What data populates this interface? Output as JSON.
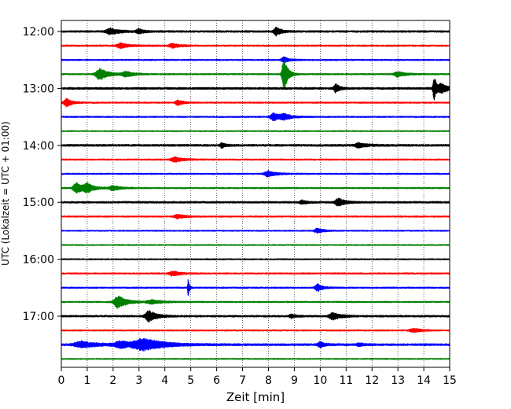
{
  "chart_data": {
    "type": "line",
    "title": "",
    "xlabel": "Zeit  [min]",
    "ylabel": "UTC (Lokalzeit = UTC + 01:00)",
    "xlim": [
      0,
      15
    ],
    "x_ticks": [
      "0",
      "1",
      "2",
      "3",
      "4",
      "5",
      "6",
      "7",
      "8",
      "9",
      "10",
      "11",
      "12",
      "13",
      "14",
      "15"
    ],
    "y_ticks": [
      {
        "label": "12:00",
        "trace": 0
      },
      {
        "label": "13:00",
        "trace": 4
      },
      {
        "label": "14:00",
        "trace": 8
      },
      {
        "label": "15:00",
        "trace": 12
      },
      {
        "label": "16:00",
        "trace": 16
      },
      {
        "label": "17:00",
        "trace": 20
      }
    ],
    "trace_interval_min": 15,
    "grid": "vertical dotted lines at each minute",
    "color_cycle": [
      "#000000",
      "#ff0000",
      "#0000ff",
      "#008000"
    ],
    "traces": [
      {
        "start": "12:00",
        "color": "#000000",
        "noise": 0.55,
        "events": [
          [
            1.9,
            0.9,
            0.35
          ],
          [
            8.3,
            1.2,
            0.2
          ],
          [
            3.0,
            0.7,
            0.2
          ]
        ]
      },
      {
        "start": "12:15",
        "color": "#ff0000",
        "noise": 0.5,
        "events": [
          [
            2.3,
            0.8,
            0.3
          ],
          [
            4.3,
            0.6,
            0.3
          ]
        ]
      },
      {
        "start": "12:30",
        "color": "#0000ff",
        "noise": 0.45,
        "events": [
          [
            8.6,
            0.8,
            0.2
          ]
        ]
      },
      {
        "start": "12:45",
        "color": "#008000",
        "noise": 0.45,
        "events": [
          [
            1.5,
            1.6,
            0.35
          ],
          [
            8.6,
            5.0,
            0.15
          ],
          [
            2.5,
            0.8,
            0.3
          ],
          [
            13.0,
            0.8,
            0.3
          ]
        ]
      },
      {
        "start": "13:00",
        "color": "#000000",
        "noise": 0.6,
        "events": [
          [
            10.6,
            1.3,
            0.15
          ],
          [
            14.4,
            3.5,
            0.1
          ],
          [
            14.7,
            1.2,
            0.3
          ]
        ]
      },
      {
        "start": "13:15",
        "color": "#ff0000",
        "noise": 0.45,
        "events": [
          [
            0.2,
            1.3,
            0.2
          ],
          [
            4.5,
            0.8,
            0.2
          ]
        ]
      },
      {
        "start": "13:30",
        "color": "#0000ff",
        "noise": 0.45,
        "events": [
          [
            8.2,
            1.2,
            0.25
          ],
          [
            8.6,
            0.8,
            0.3
          ]
        ]
      },
      {
        "start": "13:45",
        "color": "#008000",
        "noise": 0.4,
        "events": []
      },
      {
        "start": "14:00",
        "color": "#000000",
        "noise": 0.6,
        "events": [
          [
            6.2,
            0.7,
            0.15
          ],
          [
            11.5,
            0.7,
            0.3
          ]
        ]
      },
      {
        "start": "14:15",
        "color": "#ff0000",
        "noise": 0.45,
        "events": [
          [
            4.4,
            0.8,
            0.3
          ]
        ]
      },
      {
        "start": "14:30",
        "color": "#0000ff",
        "noise": 0.45,
        "events": [
          [
            8.0,
            0.9,
            0.3
          ]
        ]
      },
      {
        "start": "14:45",
        "color": "#008000",
        "noise": 0.45,
        "events": [
          [
            0.6,
            1.5,
            0.3
          ],
          [
            1.0,
            1.2,
            0.25
          ],
          [
            2.0,
            0.7,
            0.3
          ]
        ]
      },
      {
        "start": "15:00",
        "color": "#000000",
        "noise": 0.55,
        "events": [
          [
            10.7,
            1.2,
            0.25
          ],
          [
            9.3,
            0.6,
            0.2
          ]
        ]
      },
      {
        "start": "15:15",
        "color": "#ff0000",
        "noise": 0.45,
        "events": [
          [
            4.5,
            0.6,
            0.3
          ]
        ]
      },
      {
        "start": "15:30",
        "color": "#0000ff",
        "noise": 0.4,
        "events": [
          [
            9.9,
            0.7,
            0.25
          ]
        ]
      },
      {
        "start": "15:45",
        "color": "#008000",
        "noise": 0.4,
        "events": []
      },
      {
        "start": "16:00",
        "color": "#000000",
        "noise": 0.4,
        "events": []
      },
      {
        "start": "16:15",
        "color": "#ff0000",
        "noise": 0.45,
        "events": [
          [
            4.3,
            0.7,
            0.3
          ]
        ]
      },
      {
        "start": "16:30",
        "color": "#0000ff",
        "noise": 0.45,
        "events": [
          [
            4.9,
            2.5,
            0.05
          ],
          [
            9.9,
            1.1,
            0.2
          ]
        ]
      },
      {
        "start": "16:45",
        "color": "#008000",
        "noise": 0.45,
        "events": [
          [
            2.2,
            1.8,
            0.35
          ],
          [
            3.5,
            0.6,
            0.4
          ]
        ]
      },
      {
        "start": "17:00",
        "color": "#000000",
        "noise": 0.55,
        "events": [
          [
            3.4,
            1.6,
            0.3
          ],
          [
            10.5,
            1.0,
            0.3
          ],
          [
            8.9,
            0.5,
            0.2
          ]
        ]
      },
      {
        "start": "17:15",
        "color": "#ff0000",
        "noise": 0.45,
        "events": [
          [
            13.6,
            0.6,
            0.3
          ]
        ]
      },
      {
        "start": "17:30",
        "color": "#0000ff",
        "noise": 0.6,
        "events": [
          [
            3.2,
            1.6,
            0.8
          ],
          [
            0.8,
            0.9,
            0.6
          ],
          [
            2.3,
            1.0,
            0.5
          ],
          [
            10.0,
            0.8,
            0.2
          ],
          [
            11.5,
            0.5,
            0.2
          ]
        ]
      },
      {
        "start": "17:45",
        "color": "#008000",
        "noise": 0.4,
        "events": []
      }
    ]
  }
}
